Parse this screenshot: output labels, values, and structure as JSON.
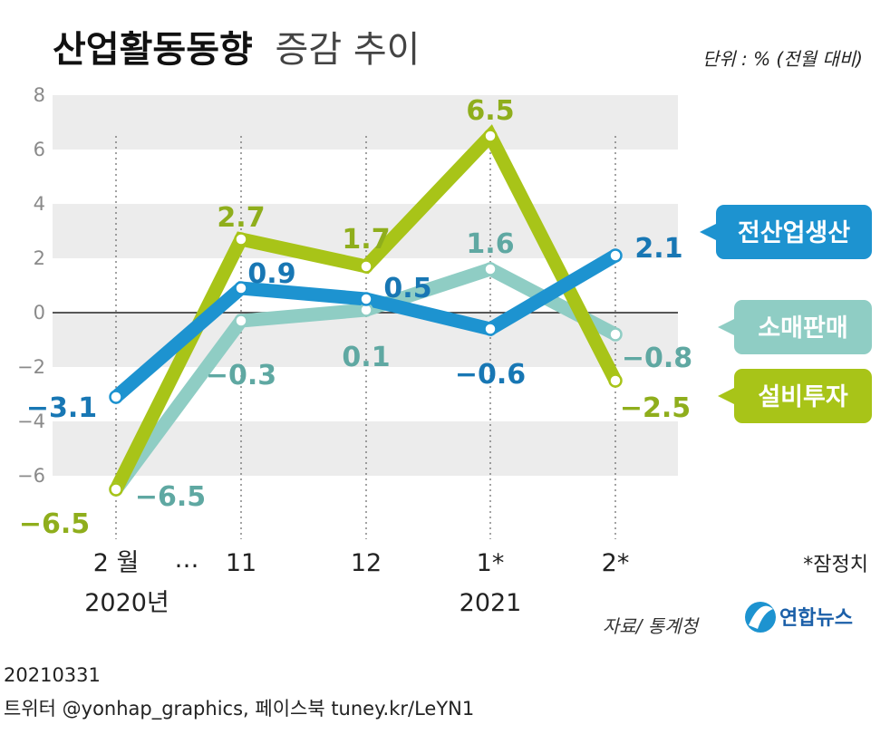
{
  "title": {
    "bold": "산업활동동향",
    "light": "증감 추이"
  },
  "unit": "단위 : % (전월 대비)",
  "chart_data": {
    "type": "line",
    "categories": [
      "2 월",
      "11",
      "12",
      "1*",
      "2*"
    ],
    "x_ellipsis": "…",
    "year_labels": [
      {
        "category": 0,
        "text": "2020년"
      },
      {
        "category": 3,
        "text": "2021"
      }
    ],
    "ylim": [
      -8,
      8
    ],
    "yticks": [
      "−6",
      "−4",
      "−2",
      "0",
      "2",
      "4",
      "6",
      "8"
    ],
    "ytick_values": [
      -6,
      -4,
      -2,
      0,
      2,
      4,
      6,
      8
    ],
    "series": [
      {
        "name": "소매판매",
        "color": "#8fcdc4",
        "label_color": "#5fa8a2",
        "values": [
          -6.5,
          -0.3,
          0.1,
          1.6,
          -0.8
        ],
        "labels": [
          "−6.5",
          "−0.3",
          "0.1",
          "1.6",
          "−0.8"
        ]
      },
      {
        "name": "설비투자",
        "color": "#a8c418",
        "label_color": "#8fae1c",
        "values": [
          -6.5,
          2.7,
          1.7,
          6.5,
          -2.5
        ],
        "labels": [
          "−6.5",
          "2.7",
          "1.7",
          "6.5",
          "−2.5"
        ]
      },
      {
        "name": "전산업생산",
        "color": "#1d93d0",
        "label_color": "#1877b4",
        "values": [
          -3.1,
          0.9,
          0.5,
          -0.6,
          2.1
        ],
        "labels": [
          "−3.1",
          "0.9",
          "0.5",
          "−0.6",
          "2.1"
        ]
      }
    ]
  },
  "note": "*잠정치",
  "source": "자료/ 통계청",
  "logo": "연합뉴스",
  "footer": {
    "date": "20210331",
    "sns": "트위터 @yonhap_graphics, 페이스북 tuney.kr/LeYN1"
  }
}
